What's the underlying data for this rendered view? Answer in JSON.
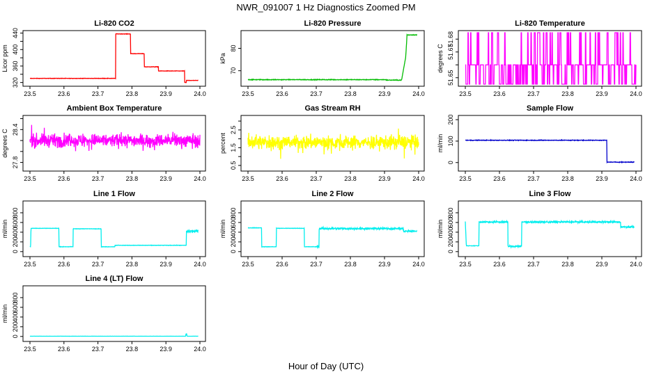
{
  "page": {
    "title": "NWR_091007  1 Hz Diagnostics Zoomed PM",
    "xlabel": "Hour of Day (UTC)"
  },
  "chart_data": [
    {
      "type": "line",
      "title": "Li-820 CO2",
      "ylabel": "Licor ppm",
      "xlim": [
        23.5,
        24.0
      ],
      "ylim": [
        316,
        441
      ],
      "xticks": [
        "23.5",
        "23.6",
        "23.7",
        "23.8",
        "23.9",
        "24.0"
      ],
      "yticks": [
        320,
        340,
        360,
        380,
        400,
        420,
        440
      ],
      "ytick_labels": [
        "320",
        "",
        "360",
        "",
        "400",
        "",
        "440"
      ],
      "color": "#ff0000",
      "series": [
        {
          "noise": 0.5,
          "x": [
            23.5,
            23.75,
            23.751,
            23.7505,
            23.7505,
            23.752,
            23.7505,
            23.7505,
            23.7505,
            23.75,
            23.752,
            23.753,
            23.752,
            23.751
          ],
          "x_steps": [
            23.5,
            23.752,
            23.752,
            23.796,
            23.796,
            23.836,
            23.836,
            23.878,
            23.878,
            23.955,
            23.955,
            23.96,
            23.96,
            23.995
          ],
          "y_steps": [
            330,
            330,
            438,
            438,
            390,
            390,
            358,
            358,
            348,
            348,
            320,
            320,
            325,
            325
          ]
        }
      ]
    },
    {
      "type": "line",
      "title": "Li-820 Pressure",
      "ylabel": "kPa",
      "xlim": [
        23.5,
        24.0
      ],
      "ylim": [
        64,
        87
      ],
      "xticks": [
        "23.5",
        "23.6",
        "23.7",
        "23.8",
        "23.9",
        "24.0"
      ],
      "yticks": [
        70,
        80
      ],
      "ytick_labels": [
        "70",
        "80"
      ],
      "color": "#00bb00",
      "series": [
        {
          "noise": 0.15,
          "x_steps": [
            23.5,
            23.905,
            23.905,
            23.95,
            23.962,
            23.966,
            23.995
          ],
          "y_steps": [
            66.0,
            66.0,
            65.8,
            65.8,
            76,
            86.0,
            86.0
          ]
        }
      ]
    },
    {
      "type": "line",
      "title": "Li-820 Temperature",
      "ylabel": "degrees C",
      "xlim": [
        23.5,
        24.0
      ],
      "ylim": [
        51.645,
        51.685
      ],
      "xticks": [
        "23.5",
        "23.6",
        "23.7",
        "23.8",
        "23.9",
        "24.0"
      ],
      "yticks": [
        51.65,
        51.66,
        51.67,
        51.68
      ],
      "ytick_labels": [
        "51.65",
        "",
        "51.67",
        "51.68"
      ],
      "color": "#ff00ff",
      "series": [
        {
          "levels": [
            51.645,
            51.66,
            51.685
          ],
          "weights": [
            0.35,
            0.5,
            0.15
          ],
          "x_range": [
            23.5,
            24.0
          ]
        }
      ]
    },
    {
      "type": "line",
      "title": "Ambient Box Temperature",
      "ylabel": "degrees C",
      "xlim": [
        23.5,
        24.0
      ],
      "ylim": [
        27.68,
        28.62
      ],
      "xticks": [
        "23.5",
        "23.6",
        "23.7",
        "23.8",
        "23.9",
        "24.0"
      ],
      "yticks": [
        27.8,
        28.0,
        28.2,
        28.4,
        28.6
      ],
      "ytick_labels": [
        "27.8",
        "",
        "",
        "28.4",
        ""
      ],
      "color": "#ff00ff",
      "series": [
        {
          "mean": 28.2,
          "noise": 0.12,
          "x_range": [
            23.5,
            24.0
          ]
        }
      ]
    },
    {
      "type": "line",
      "title": "Gas Stream RH",
      "ylabel": "percent",
      "xlim": [
        23.5,
        24.0
      ],
      "ylim": [
        0.3,
        3.2
      ],
      "xticks": [
        "23.5",
        "23.6",
        "23.7",
        "23.8",
        "23.9",
        "24.0"
      ],
      "yticks": [
        0.5,
        1.0,
        1.5,
        2.0,
        2.5,
        3.0
      ],
      "ytick_labels": [
        "0.5",
        "",
        "1.5",
        "",
        "2.5",
        ""
      ],
      "color": "#ffff00",
      "series": [
        {
          "mean": 1.8,
          "noise": 0.4,
          "x_range": [
            23.5,
            24.0
          ]
        }
      ]
    },
    {
      "type": "line",
      "title": "Sample Flow",
      "ylabel": "ml/min",
      "xlim": [
        23.5,
        24.0
      ],
      "ylim": [
        -30,
        210
      ],
      "xticks": [
        "23.5",
        "23.6",
        "23.7",
        "23.8",
        "23.9",
        "24.0"
      ],
      "yticks": [
        0,
        100,
        200
      ],
      "ytick_labels": [
        "0",
        "100",
        "200"
      ],
      "color": "#0000cc",
      "series": [
        {
          "noise": 1.5,
          "x_steps": [
            23.5,
            23.915,
            23.915,
            23.995
          ],
          "y_steps": [
            104,
            104,
            2,
            2
          ]
        }
      ]
    },
    {
      "type": "line",
      "title": "Line 1 Flow",
      "ylabel": "ml/min",
      "xlim": [
        23.5,
        24.0
      ],
      "ylim": [
        -60,
        1000
      ],
      "xticks": [
        "23.5",
        "23.6",
        "23.7",
        "23.8",
        "23.9",
        "24.0"
      ],
      "yticks": [
        0,
        200,
        400,
        600,
        800
      ],
      "ytick_labels": [
        "0",
        "200",
        "400",
        "600",
        "800"
      ],
      "color": "#00eeee",
      "series": [
        {
          "noise": 4,
          "x_steps": [
            23.5,
            23.502,
            23.503,
            23.585,
            23.585,
            23.627,
            23.627,
            23.71,
            23.71,
            23.75,
            23.75,
            23.96,
            23.96,
            23.995
          ],
          "y_steps": [
            100,
            100,
            480,
            480,
            100,
            100,
            470,
            470,
            100,
            100,
            130,
            130,
            420,
            420
          ],
          "noisy_from": 23.962,
          "noisy_amp": 30
        }
      ]
    },
    {
      "type": "line",
      "title": "Line 2 Flow",
      "ylabel": "ml/min",
      "xlim": [
        23.5,
        24.0
      ],
      "ylim": [
        -60,
        1000
      ],
      "xticks": [
        "23.5",
        "23.6",
        "23.7",
        "23.8",
        "23.9",
        "24.0"
      ],
      "yticks": [
        0,
        200,
        400,
        600,
        800
      ],
      "ytick_labels": [
        "0",
        "200",
        "400",
        "600",
        "800"
      ],
      "color": "#00eeee",
      "series": [
        {
          "noise": 4,
          "x_steps": [
            23.5,
            23.54,
            23.54,
            23.583,
            23.583,
            23.665,
            23.665,
            23.708,
            23.708,
            23.955,
            23.955,
            23.995
          ],
          "y_steps": [
            490,
            490,
            100,
            100,
            480,
            480,
            100,
            100,
            475,
            475,
            420,
            420
          ],
          "noisy_from": 23.7,
          "noisy_amp": 20
        }
      ]
    },
    {
      "type": "line",
      "title": "Line 3 Flow",
      "ylabel": "ml/min",
      "xlim": [
        23.5,
        24.0
      ],
      "ylim": [
        -60,
        1000
      ],
      "xticks": [
        "23.5",
        "23.6",
        "23.7",
        "23.8",
        "23.9",
        "24.0"
      ],
      "yticks": [
        0,
        200,
        400,
        600,
        800
      ],
      "ytick_labels": [
        "0",
        "200",
        "400",
        "600",
        "800"
      ],
      "color": "#00eeee",
      "series": [
        {
          "noise": 4,
          "x_steps": [
            23.5,
            23.503,
            23.505,
            23.54,
            23.54,
            23.625,
            23.625,
            23.665,
            23.665,
            23.955,
            23.955,
            23.995
          ],
          "y_steps": [
            620,
            120,
            120,
            120,
            610,
            610,
            110,
            110,
            610,
            610,
            510,
            510
          ],
          "noisy_from": 23.54,
          "noisy_amp": 18
        }
      ]
    },
    {
      "type": "line",
      "title": "Line 4 (LT) Flow",
      "ylabel": "ml/min",
      "xlim": [
        23.5,
        24.0
      ],
      "ylim": [
        -60,
        1000
      ],
      "xticks": [
        "23.5",
        "23.6",
        "23.7",
        "23.8",
        "23.9",
        "24.0"
      ],
      "yticks": [
        0,
        200,
        400,
        600,
        800
      ],
      "ytick_labels": [
        "0",
        "200",
        "400",
        "600",
        "800"
      ],
      "color": "#00eeee",
      "series": [
        {
          "noise": 1,
          "x_steps": [
            23.5,
            23.958,
            23.959,
            23.961,
            23.962,
            23.995
          ],
          "y_steps": [
            5,
            5,
            55,
            55,
            5,
            5
          ]
        }
      ]
    }
  ]
}
